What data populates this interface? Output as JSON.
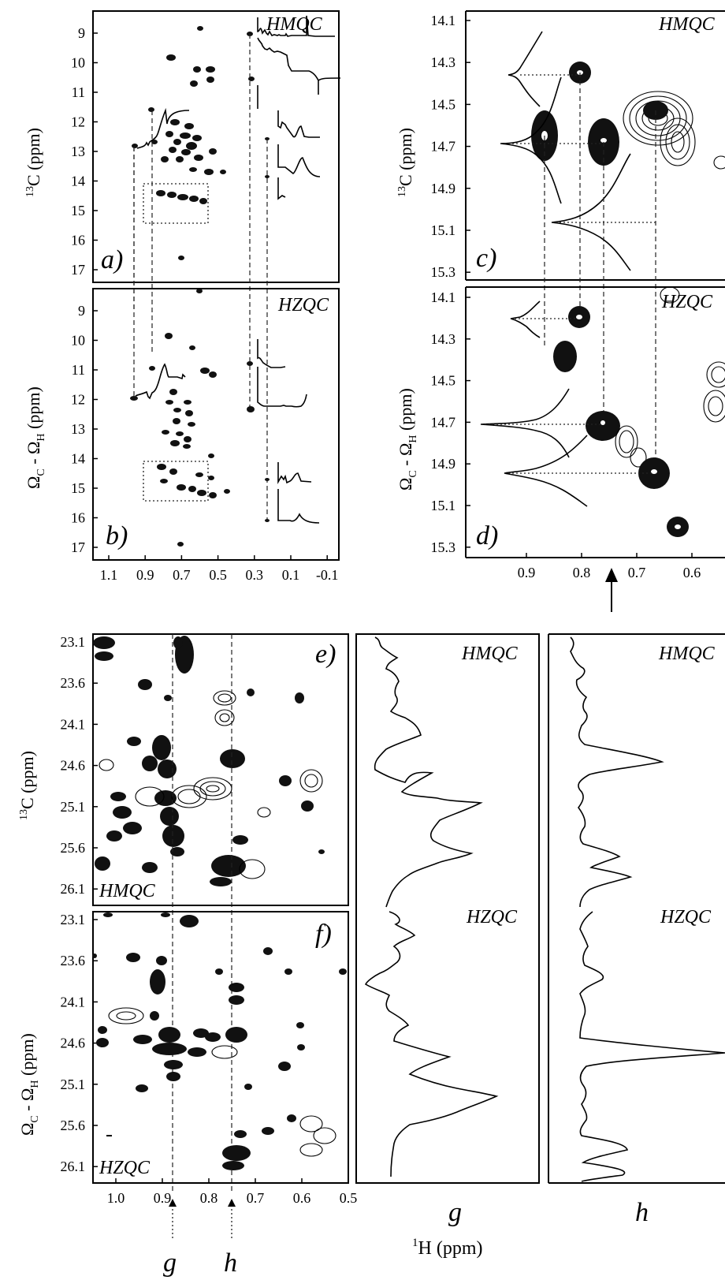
{
  "figure": {
    "panels": {
      "a": {
        "letter": "a)",
        "tag": "HMQC",
        "ylabel_main": "C (ppm)",
        "ylabel_sup": "13",
        "yticks": [
          "9",
          "10",
          "11",
          "12",
          "13",
          "14",
          "15",
          "16",
          "17"
        ]
      },
      "b": {
        "letter": "b)",
        "tag": "HZQC",
        "yticks": [
          "9",
          "10",
          "11",
          "12",
          "13",
          "14",
          "15",
          "16",
          "17"
        ],
        "xticks": [
          "1.1",
          "0.9",
          "0.7",
          "0.5",
          "0.3",
          "0.1",
          "-0.1"
        ]
      },
      "c": {
        "letter": "c)",
        "tag": "HMQC",
        "ylabel_main": "C (ppm)",
        "ylabel_sup": "13",
        "yticks": [
          "14.1",
          "14.3",
          "14.5",
          "14.7",
          "14.9",
          "15.1",
          "15.3"
        ]
      },
      "d": {
        "letter": "d)",
        "tag": "HZQC",
        "yticks": [
          "14.1",
          "14.3",
          "14.5",
          "14.7",
          "14.9",
          "15.1",
          "15.3"
        ],
        "xticks": [
          "0.9",
          "0.8",
          "0.7",
          "0.6"
        ]
      },
      "e": {
        "letter": "e)",
        "tag": "HMQC",
        "ylabel_main": "C (ppm)",
        "ylabel_sup": "13",
        "yticks": [
          "23.1",
          "23.6",
          "24.1",
          "24.6",
          "25.1",
          "25.6",
          "26.1"
        ]
      },
      "f": {
        "letter": "f)",
        "tag": "HZQC",
        "yticks": [
          "23.1",
          "23.6",
          "24.1",
          "24.6",
          "25.1",
          "25.6",
          "26.1"
        ],
        "xticks": [
          "1.0",
          "0.9",
          "0.8",
          "0.7",
          "0.6",
          "0.5"
        ]
      },
      "g": {
        "tag_top": "HMQC",
        "tag_bottom": "HZQC",
        "letter": "g"
      },
      "h": {
        "tag_top": "HMQC",
        "tag_bottom": "HZQC",
        "letter": "h"
      }
    },
    "ylabel_zq": {
      "omega": "Ω",
      "sub_c": "C",
      "dash": " - ",
      "sub_h": "H",
      "unit": " (ppm)"
    },
    "xlabel": {
      "sup": "1",
      "main": "H (ppm)"
    },
    "markers": {
      "g": "g",
      "h": "h"
    }
  }
}
